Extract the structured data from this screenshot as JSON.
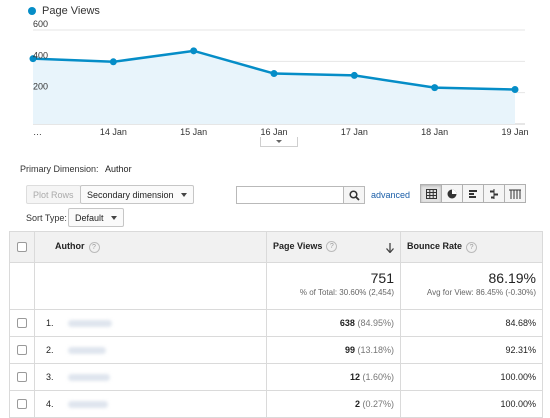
{
  "legend": {
    "label": "Page Views",
    "color": "#058dc7"
  },
  "chart_data": {
    "type": "area",
    "title": "",
    "series": [
      {
        "name": "Page Views",
        "values": [
          417,
          397,
          467,
          322,
          310,
          232,
          220
        ]
      }
    ],
    "x_ticks": [
      "…",
      "14 Jan",
      "15 Jan",
      "16 Jan",
      "17 Jan",
      "18 Jan",
      "19 Jan"
    ],
    "y_ticks": [
      "600",
      "400",
      "200"
    ],
    "ylim": [
      0,
      600
    ],
    "grid": true,
    "legend_position": "top-left"
  },
  "primary_dimension": {
    "label": "Primary Dimension:",
    "value": "Author"
  },
  "toolbar": {
    "plot_rows": "Plot Rows",
    "secondary_dimension": "Secondary dimension",
    "search_value": "",
    "advanced": "advanced",
    "sort_type_label": "Sort Type:",
    "sort_type_value": "Default"
  },
  "table": {
    "headers": {
      "author": "Author",
      "page_views": "Page Views",
      "bounce_rate": "Bounce Rate"
    },
    "summary": {
      "page_views": "751",
      "page_views_sub": "% of Total: 30.60% (2,454)",
      "bounce_rate": "86.19%",
      "bounce_rate_sub": "Avg for View: 86.45% (-0.30%)"
    },
    "rows": [
      {
        "index": "1.",
        "page_views": "638",
        "pv_pct": "(84.95%)",
        "bounce_rate": "84.68%"
      },
      {
        "index": "2.",
        "page_views": "99",
        "pv_pct": "(13.18%)",
        "bounce_rate": "92.31%"
      },
      {
        "index": "3.",
        "page_views": "12",
        "pv_pct": "(1.60%)",
        "bounce_rate": "100.00%"
      },
      {
        "index": "4.",
        "page_views": "2",
        "pv_pct": "(0.27%)",
        "bounce_rate": "100.00%"
      }
    ]
  }
}
